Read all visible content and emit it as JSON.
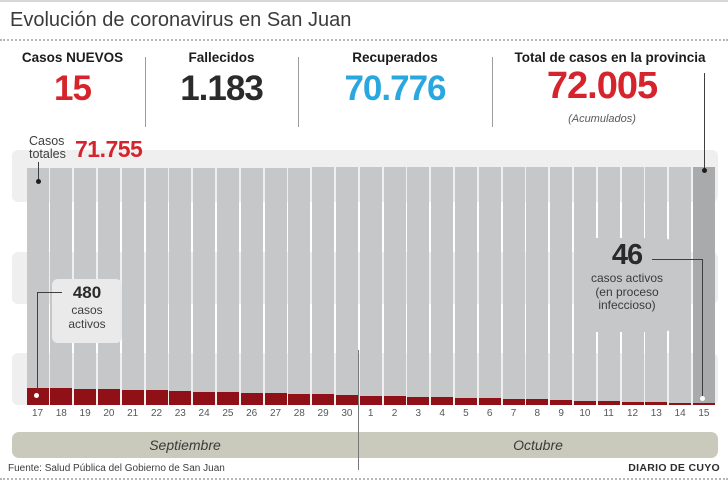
{
  "header": {
    "title": "Evolución de coronavirus en San Juan",
    "stats": [
      {
        "label": "Casos NUEVOS",
        "value": "15",
        "color": "#d6242c"
      },
      {
        "label": "Fallecidos",
        "value": "1.183",
        "color": "#2b2b2b"
      },
      {
        "label": "Recuperados",
        "value": "70.776",
        "color": "#29a7df"
      },
      {
        "label": "Total de casos en la provincia",
        "value": "72.005",
        "sublabel": "(Acumulados)",
        "color": "#d6242c"
      }
    ]
  },
  "chart": {
    "totales_label": {
      "line1": "Casos",
      "line2": "totales",
      "value": "71.755"
    },
    "callout_start": {
      "value": "480",
      "line1": "casos",
      "line2": "activos"
    },
    "callout_end": {
      "value": "46",
      "line1": "casos activos",
      "line2": "(en proceso",
      "line3": "infeccioso)"
    }
  },
  "footer": {
    "source": "Fuente: Salud Pública del Gobierno de San Juan",
    "credit": "DIARIO DE CUYO"
  },
  "colors": {
    "accent_red": "#d6242c",
    "accent_blue": "#29a7df",
    "bar_gray": "#c6c7c8",
    "bar_gray_last": "#a9aaac",
    "bar_dark_red": "#8f1016",
    "stripe": "#efeff0",
    "month_band": "#c9c9bc"
  },
  "chart_data": {
    "type": "bar",
    "title": "Evolución de coronavirus en San Juan",
    "x": [
      "17",
      "18",
      "19",
      "20",
      "21",
      "22",
      "23",
      "24",
      "25",
      "26",
      "27",
      "28",
      "29",
      "30",
      "1",
      "2",
      "3",
      "4",
      "5",
      "6",
      "7",
      "8",
      "9",
      "10",
      "11",
      "12",
      "13",
      "14",
      "15"
    ],
    "months": [
      {
        "label": "Septiembre",
        "days": 14
      },
      {
        "label": "Octubre",
        "days": 15
      }
    ],
    "ylim": [
      0,
      72005
    ],
    "series": [
      {
        "name": "Casos totales",
        "color": "#c6c7c8",
        "last_bar_color": "#a9aaac",
        "values": [
          71755,
          71764,
          71773,
          71782,
          71791,
          71800,
          71809,
          71817,
          71826,
          71835,
          71844,
          71853,
          71862,
          71871,
          71880,
          71889,
          71898,
          71907,
          71916,
          71925,
          71934,
          71942,
          71951,
          71960,
          71969,
          71978,
          71987,
          71996,
          72005
        ]
      },
      {
        "name": "Casos activos",
        "color": "#8f1016",
        "values": [
          480,
          465,
          449,
          434,
          418,
          403,
          387,
          372,
          356,
          341,
          325,
          310,
          294,
          279,
          263,
          248,
          232,
          217,
          201,
          186,
          170,
          155,
          139,
          124,
          108,
          93,
          77,
          62,
          46
        ]
      }
    ],
    "annotations": [
      {
        "target": "first_bar_total",
        "text": "Casos totales 71.755"
      },
      {
        "target": "first_bar_active",
        "text": "480 casos activos"
      },
      {
        "target": "last_bar_active",
        "text": "46 casos activos (en proceso infeccioso)"
      },
      {
        "target": "last_bar_total",
        "text": "72.005"
      }
    ]
  }
}
